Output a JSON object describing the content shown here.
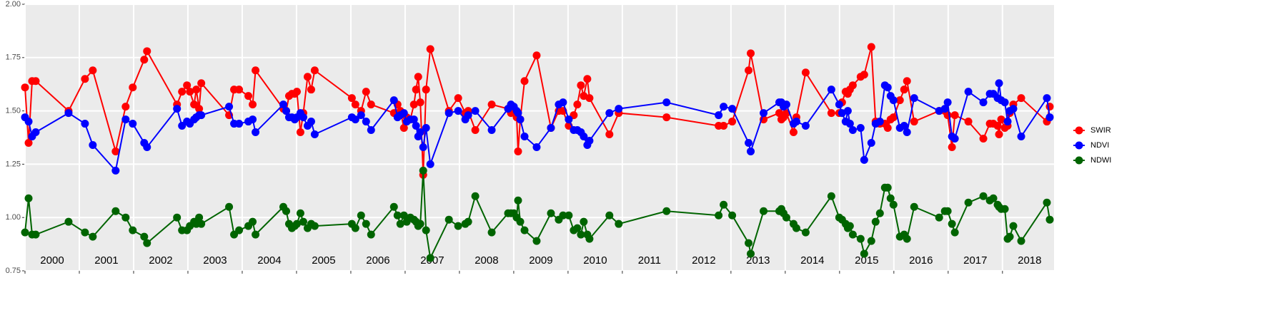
{
  "chart_data": {
    "type": "line",
    "x": [
      2000.0,
      2000.066,
      2000.131,
      2000.197,
      2000.802,
      2001.104,
      2001.248,
      2001.669,
      2001.853,
      2001.984,
      2002.195,
      2002.247,
      2002.799,
      2002.891,
      2002.983,
      2003.036,
      2003.114,
      2003.154,
      2003.206,
      2003.246,
      2003.758,
      2003.85,
      2003.942,
      2004.113,
      2004.192,
      2004.245,
      2004.757,
      2004.81,
      2004.862,
      2004.915,
      2004.967,
      2005.007,
      2005.072,
      2005.125,
      2005.204,
      2005.27,
      2005.335,
      2006.019,
      2006.084,
      2006.189,
      2006.281,
      2006.373,
      2006.794,
      2006.86,
      2006.912,
      2006.978,
      2007.03,
      2007.096,
      2007.162,
      2007.201,
      2007.241,
      2007.28,
      2007.333,
      2007.385,
      2007.464,
      2007.806,
      2007.977,
      2008.108,
      2008.161,
      2008.292,
      2008.594,
      2008.896,
      2008.949,
      2009.002,
      2009.054,
      2009.08,
      2009.12,
      2009.199,
      2009.422,
      2009.685,
      2009.829,
      2009.908,
      2010.013,
      2010.105,
      2010.171,
      2010.237,
      2010.289,
      2010.355,
      2010.395,
      2010.762,
      2010.933,
      2011.814,
      2012.773,
      2012.865,
      2013.023,
      2013.325,
      2013.364,
      2013.601,
      2013.89,
      2013.929,
      2013.969,
      2014.021,
      2014.153,
      2014.205,
      2014.376,
      2014.849,
      2014.994,
      2015.046,
      2015.112,
      2015.152,
      2015.191,
      2015.244,
      2015.388,
      2015.454,
      2015.585,
      2015.664,
      2015.743,
      2015.835,
      2015.887,
      2015.94,
      2015.993,
      2016.111,
      2016.19,
      2016.242,
      2016.374,
      2016.834,
      2016.939,
      2016.991,
      2017.07,
      2017.123,
      2017.372,
      2017.648,
      2017.767,
      2017.832,
      2017.911,
      2017.937,
      2017.977,
      2018.043,
      2018.095,
      2018.135,
      2018.2,
      2018.345,
      2018.818,
      2018.871
    ],
    "series": [
      {
        "name": "SWIR",
        "color": "#ff0000",
        "values": [
          1.61,
          1.35,
          1.64,
          1.64,
          1.5,
          1.65,
          1.69,
          1.31,
          1.52,
          1.61,
          1.74,
          1.78,
          1.53,
          1.59,
          1.62,
          1.59,
          1.53,
          1.6,
          1.51,
          1.63,
          1.48,
          1.6,
          1.6,
          1.57,
          1.53,
          1.69,
          1.51,
          1.5,
          1.57,
          1.58,
          1.58,
          1.59,
          1.4,
          1.49,
          1.66,
          1.6,
          1.69,
          1.56,
          1.53,
          1.5,
          1.59,
          1.53,
          1.49,
          1.53,
          1.5,
          1.42,
          1.47,
          1.46,
          1.53,
          1.6,
          1.66,
          1.54,
          1.2,
          1.6,
          1.79,
          1.5,
          1.56,
          1.49,
          1.5,
          1.41,
          1.53,
          1.51,
          1.49,
          1.5,
          1.47,
          1.31,
          1.46,
          1.64,
          1.76,
          1.42,
          1.5,
          1.5,
          1.43,
          1.48,
          1.53,
          1.62,
          1.57,
          1.65,
          1.56,
          1.39,
          1.49,
          1.47,
          1.43,
          1.43,
          1.45,
          1.69,
          1.77,
          1.46,
          1.49,
          1.46,
          1.47,
          1.49,
          1.4,
          1.47,
          1.68,
          1.49,
          1.49,
          1.54,
          1.59,
          1.58,
          1.6,
          1.62,
          1.66,
          1.67,
          1.8,
          1.45,
          1.44,
          1.44,
          1.42,
          1.46,
          1.47,
          1.55,
          1.6,
          1.64,
          1.45,
          1.5,
          1.5,
          1.48,
          1.33,
          1.48,
          1.45,
          1.37,
          1.44,
          1.44,
          1.43,
          1.39,
          1.46,
          1.42,
          1.43,
          1.49,
          1.53,
          1.56,
          1.45,
          1.52
        ]
      },
      {
        "name": "NDVI",
        "color": "#0000ff",
        "values": [
          1.47,
          1.45,
          1.38,
          1.4,
          1.49,
          1.44,
          1.34,
          1.22,
          1.46,
          1.44,
          1.35,
          1.33,
          1.51,
          1.43,
          1.45,
          1.44,
          1.46,
          1.47,
          1.48,
          1.48,
          1.52,
          1.44,
          1.44,
          1.45,
          1.46,
          1.4,
          1.53,
          1.5,
          1.47,
          1.47,
          1.46,
          1.47,
          1.49,
          1.47,
          1.43,
          1.45,
          1.39,
          1.47,
          1.46,
          1.48,
          1.45,
          1.41,
          1.55,
          1.47,
          1.48,
          1.49,
          1.45,
          1.46,
          1.46,
          1.43,
          1.38,
          1.4,
          1.33,
          1.42,
          1.25,
          1.49,
          1.5,
          1.46,
          1.48,
          1.5,
          1.41,
          1.51,
          1.53,
          1.52,
          1.5,
          1.49,
          1.46,
          1.38,
          1.33,
          1.42,
          1.53,
          1.54,
          1.46,
          1.41,
          1.41,
          1.4,
          1.38,
          1.34,
          1.36,
          1.49,
          1.51,
          1.54,
          1.48,
          1.52,
          1.51,
          1.35,
          1.31,
          1.49,
          1.54,
          1.54,
          1.52,
          1.53,
          1.44,
          1.45,
          1.43,
          1.6,
          1.53,
          1.49,
          1.45,
          1.5,
          1.44,
          1.41,
          1.42,
          1.27,
          1.35,
          1.44,
          1.45,
          1.62,
          1.61,
          1.57,
          1.55,
          1.42,
          1.43,
          1.4,
          1.56,
          1.5,
          1.51,
          1.54,
          1.38,
          1.37,
          1.59,
          1.54,
          1.58,
          1.58,
          1.56,
          1.63,
          1.55,
          1.54,
          1.45,
          1.5,
          1.51,
          1.38,
          1.56,
          1.47
        ]
      },
      {
        "name": "NDWI",
        "color": "#006400",
        "values": [
          0.93,
          1.09,
          0.92,
          0.92,
          0.98,
          0.93,
          0.91,
          1.03,
          1.0,
          0.94,
          0.91,
          0.88,
          1.0,
          0.94,
          0.94,
          0.96,
          0.98,
          0.97,
          1.0,
          0.97,
          1.05,
          0.92,
          0.94,
          0.96,
          0.98,
          0.92,
          1.05,
          1.03,
          0.97,
          0.95,
          0.96,
          0.97,
          1.02,
          0.98,
          0.95,
          0.97,
          0.96,
          0.97,
          0.95,
          1.01,
          0.97,
          0.92,
          1.05,
          1.01,
          0.97,
          1.01,
          0.98,
          1.0,
          0.99,
          0.98,
          0.96,
          0.97,
          1.22,
          0.94,
          0.81,
          0.99,
          0.96,
          0.97,
          0.98,
          1.1,
          0.93,
          1.02,
          1.02,
          1.02,
          1.0,
          1.08,
          0.98,
          0.94,
          0.89,
          1.02,
          0.99,
          1.01,
          1.01,
          0.94,
          0.95,
          0.92,
          0.98,
          0.92,
          0.9,
          1.01,
          0.97,
          1.03,
          1.01,
          1.06,
          1.01,
          0.88,
          0.83,
          1.03,
          1.03,
          1.04,
          1.02,
          1.0,
          0.97,
          0.95,
          0.93,
          1.1,
          1.0,
          0.99,
          0.97,
          0.95,
          0.96,
          0.92,
          0.9,
          0.83,
          0.89,
          0.98,
          1.02,
          1.14,
          1.14,
          1.09,
          1.06,
          0.91,
          0.92,
          0.9,
          1.05,
          1.0,
          1.03,
          1.03,
          0.97,
          0.93,
          1.07,
          1.1,
          1.08,
          1.09,
          1.06,
          1.05,
          1.04,
          1.04,
          0.9,
          0.91,
          0.96,
          0.89,
          1.07,
          0.99
        ]
      }
    ],
    "xlim": [
      2000,
      2018.95
    ],
    "xticks": [
      2000,
      2001,
      2002,
      2003,
      2004,
      2005,
      2006,
      2007,
      2008,
      2009,
      2010,
      2011,
      2012,
      2013,
      2014,
      2015,
      2016,
      2017,
      2018
    ],
    "ylim": [
      0.75,
      2.0
    ],
    "yticks": [
      0.75,
      {
        "value": 1,
        "label": "1.00"
      },
      1.25,
      {
        "value": 1.5,
        "label": "1.50"
      },
      1.75,
      {
        "value": 2,
        "label": "2.00"
      }
    ],
    "grid": true,
    "legend": "right"
  }
}
